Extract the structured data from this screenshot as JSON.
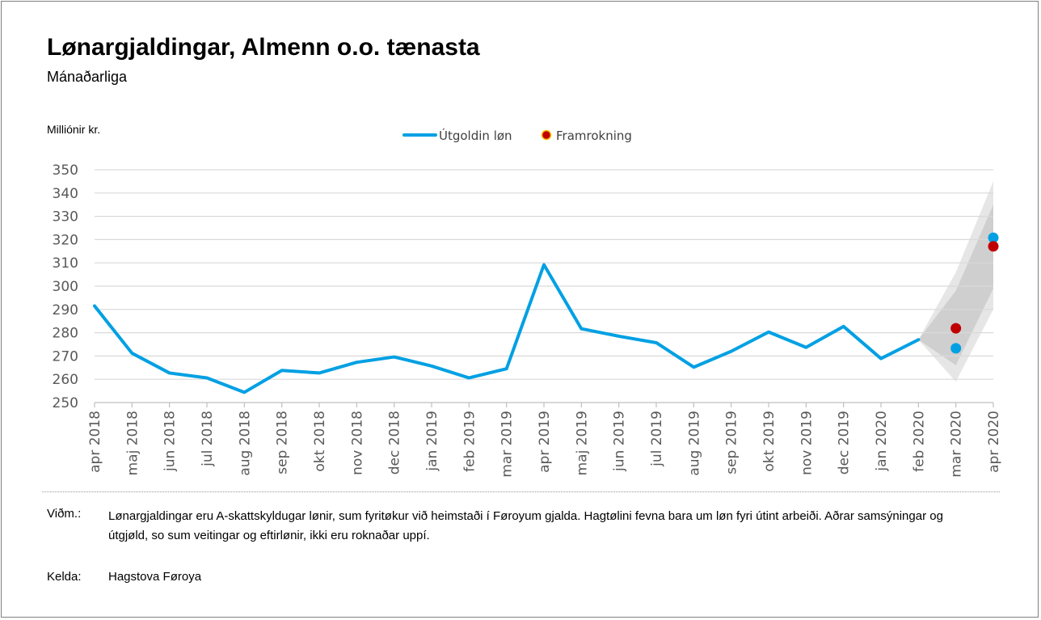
{
  "chart_data": {
    "type": "line",
    "title": "Lønargjaldingar, Almenn o.o. tænasta",
    "subtitle": "Mánaðarliga",
    "ylabel": "Milliónir kr.",
    "xlabel": "",
    "ylim": [
      250,
      350
    ],
    "yticks": [
      250,
      260,
      270,
      280,
      290,
      300,
      310,
      320,
      330,
      340,
      350
    ],
    "yticklabels": [
      "250",
      "260",
      "270",
      "280",
      "290",
      "300",
      "310",
      "320",
      "330",
      "340",
      "350"
    ],
    "grid": true,
    "legend_position": "top-center",
    "categories": [
      "apr 2018",
      "maj 2018",
      "jun 2018",
      "jul 2018",
      "aug 2018",
      "sep 2018",
      "okt 2018",
      "nov 2018",
      "dec 2018",
      "jan 2019",
      "feb 2019",
      "mar 2019",
      "apr 2019",
      "maj 2019",
      "jun 2019",
      "jul 2019",
      "aug 2019",
      "sep 2019",
      "okt 2019",
      "nov 2019",
      "dec 2019",
      "jan 2020",
      "feb 2020",
      "mar 2020",
      "apr 2020"
    ],
    "series": [
      {
        "name": "Útgoldin løn",
        "color": "#00a0e3",
        "values": [
          291.5,
          271.2,
          262.7,
          260.6,
          254.4,
          263.8,
          262.7,
          267.3,
          269.6,
          265.7,
          260.6,
          264.5,
          309.2,
          281.7,
          278.5,
          275.7,
          265.2,
          272.0,
          280.3,
          273.7,
          282.7,
          268.9,
          277.0,
          273.3,
          320.8
        ]
      },
      {
        "name": "Framrokning",
        "color": "#c00000",
        "values": [
          null,
          null,
          null,
          null,
          null,
          null,
          null,
          null,
          null,
          null,
          null,
          null,
          null,
          null,
          null,
          null,
          null,
          null,
          null,
          null,
          null,
          null,
          null,
          281.9,
          317.1
        ]
      }
    ],
    "forecast_band": {
      "start_category": "feb 2020",
      "inner": {
        "color": "#cfcfcf",
        "upper": [
          277.0,
          298.0,
          335.0
        ],
        "lower": [
          277.0,
          266.0,
          299.0
        ]
      },
      "outer": {
        "color": "#e6e6e6",
        "upper": [
          277.0,
          306.0,
          345.0
        ],
        "lower": [
          277.0,
          259.0,
          290.0
        ]
      }
    }
  },
  "legend": {
    "line_label": "Útgoldin løn",
    "dot_label": "Framrokning"
  },
  "footer": {
    "note_label": "Viðm.:",
    "note_text": "Lønargjaldingar eru A-skattskyldugar lønir, sum fyritøkur við heimstaði í Føroyum gjalda. Hagtølini fevna bara um løn fyri útint arbeiði. Aðrar samsýningar og útgjøld, so sum veitingar og eftirlønir, ikki eru roknaðar uppí.",
    "source_label": "Kelda:",
    "source_text": "Hagstova Føroya"
  }
}
